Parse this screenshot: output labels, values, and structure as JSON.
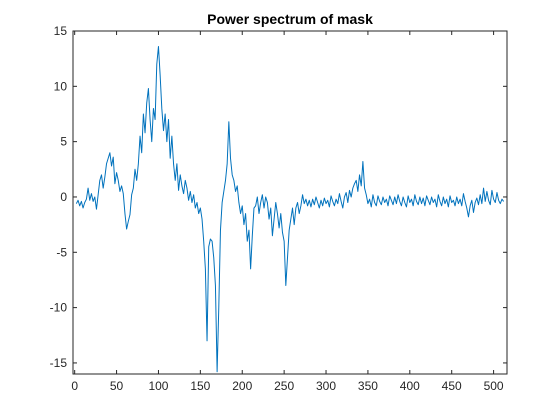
{
  "chart_data": {
    "type": "line",
    "title": "Power spectrum of mask",
    "xlabel": "",
    "ylabel": "",
    "xlim": [
      -2,
      516
    ],
    "ylim": [
      -16,
      15
    ],
    "xticks": [
      0,
      50,
      100,
      150,
      200,
      250,
      300,
      350,
      400,
      450,
      500
    ],
    "yticks": [
      -15,
      -10,
      -5,
      0,
      5,
      10,
      15
    ],
    "grid": false,
    "legend": "none",
    "series": [
      {
        "color": "#0072BD",
        "points": [
          [
            2,
            -0.6
          ],
          [
            4,
            -0.3
          ],
          [
            6,
            -0.8
          ],
          [
            8,
            -0.4
          ],
          [
            10,
            -1.0
          ],
          [
            12,
            -0.5
          ],
          [
            14,
            -0.2
          ],
          [
            16,
            0.8
          ],
          [
            18,
            -0.3
          ],
          [
            20,
            0.3
          ],
          [
            22,
            -0.4
          ],
          [
            24,
            0.0
          ],
          [
            26,
            -1.1
          ],
          [
            28,
            0.2
          ],
          [
            30,
            1.5
          ],
          [
            32,
            2.0
          ],
          [
            34,
            0.8
          ],
          [
            36,
            1.8
          ],
          [
            38,
            3.0
          ],
          [
            40,
            3.5
          ],
          [
            42,
            4.0
          ],
          [
            44,
            2.8
          ],
          [
            46,
            3.6
          ],
          [
            48,
            1.2
          ],
          [
            50,
            2.2
          ],
          [
            52,
            1.5
          ],
          [
            54,
            0.5
          ],
          [
            56,
            1.0
          ],
          [
            58,
            0.3
          ],
          [
            60,
            -1.5
          ],
          [
            62,
            -2.9
          ],
          [
            64,
            -2.2
          ],
          [
            66,
            -1.6
          ],
          [
            68,
            0.2
          ],
          [
            70,
            0.8
          ],
          [
            72,
            2.5
          ],
          [
            74,
            1.5
          ],
          [
            76,
            3.0
          ],
          [
            78,
            5.5
          ],
          [
            80,
            4.0
          ],
          [
            82,
            7.5
          ],
          [
            84,
            5.8
          ],
          [
            86,
            8.5
          ],
          [
            88,
            9.8
          ],
          [
            90,
            7.0
          ],
          [
            92,
            5.0
          ],
          [
            94,
            8.0
          ],
          [
            96,
            7.0
          ],
          [
            98,
            12.0
          ],
          [
            100,
            13.6
          ],
          [
            102,
            11.0
          ],
          [
            104,
            8.0
          ],
          [
            106,
            6.0
          ],
          [
            108,
            7.5
          ],
          [
            110,
            5.0
          ],
          [
            112,
            7.0
          ],
          [
            114,
            3.5
          ],
          [
            116,
            5.5
          ],
          [
            118,
            3.0
          ],
          [
            120,
            1.5
          ],
          [
            122,
            3.0
          ],
          [
            124,
            0.6
          ],
          [
            126,
            2.0
          ],
          [
            128,
            1.0
          ],
          [
            130,
            0.3
          ],
          [
            132,
            1.5
          ],
          [
            134,
            0.8
          ],
          [
            136,
            -0.3
          ],
          [
            138,
            0.5
          ],
          [
            140,
            -0.5
          ],
          [
            142,
            0.2
          ],
          [
            144,
            -1.0
          ],
          [
            146,
            -0.5
          ],
          [
            148,
            -1.5
          ],
          [
            150,
            -1.0
          ],
          [
            152,
            -2.0
          ],
          [
            154,
            -4.0
          ],
          [
            156,
            -6.5
          ],
          [
            158,
            -13.0
          ],
          [
            160,
            -4.5
          ],
          [
            162,
            -3.8
          ],
          [
            164,
            -4.0
          ],
          [
            166,
            -5.5
          ],
          [
            168,
            -8.0
          ],
          [
            170,
            -15.8
          ],
          [
            172,
            -10.0
          ],
          [
            174,
            -3.0
          ],
          [
            176,
            -0.5
          ],
          [
            178,
            0.5
          ],
          [
            180,
            1.5
          ],
          [
            182,
            3.0
          ],
          [
            184,
            6.8
          ],
          [
            186,
            3.5
          ],
          [
            188,
            2.0
          ],
          [
            190,
            1.5
          ],
          [
            192,
            0.5
          ],
          [
            194,
            1.0
          ],
          [
            196,
            -0.5
          ],
          [
            198,
            -1.5
          ],
          [
            200,
            -0.8
          ],
          [
            202,
            -2.5
          ],
          [
            204,
            -1.5
          ],
          [
            206,
            -4.0
          ],
          [
            208,
            -3.0
          ],
          [
            210,
            -6.5
          ],
          [
            212,
            -3.5
          ],
          [
            214,
            -1.0
          ],
          [
            216,
            -0.8
          ],
          [
            218,
            0.0
          ],
          [
            220,
            -1.5
          ],
          [
            222,
            -0.5
          ],
          [
            224,
            0.2
          ],
          [
            226,
            -1.0
          ],
          [
            228,
            0.0
          ],
          [
            230,
            -0.5
          ],
          [
            232,
            -2.0
          ],
          [
            234,
            -1.0
          ],
          [
            236,
            -3.5
          ],
          [
            238,
            -2.0
          ],
          [
            240,
            -0.5
          ],
          [
            242,
            -1.5
          ],
          [
            244,
            -2.8
          ],
          [
            246,
            -1.5
          ],
          [
            248,
            -3.2
          ],
          [
            250,
            -4.0
          ],
          [
            252,
            -8.0
          ],
          [
            254,
            -5.5
          ],
          [
            256,
            -3.0
          ],
          [
            258,
            -2.0
          ],
          [
            260,
            -1.0
          ],
          [
            262,
            -2.5
          ],
          [
            264,
            -1.0
          ],
          [
            266,
            -0.5
          ],
          [
            268,
            -1.5
          ],
          [
            270,
            -0.8
          ],
          [
            272,
            0.2
          ],
          [
            274,
            -0.6
          ],
          [
            276,
            -0.2
          ],
          [
            278,
            -0.8
          ],
          [
            280,
            -0.3
          ],
          [
            282,
            -0.9
          ],
          [
            284,
            -0.2
          ],
          [
            286,
            -0.7
          ],
          [
            288,
            0.0
          ],
          [
            290,
            -0.5
          ],
          [
            292,
            -1.0
          ],
          [
            294,
            -0.3
          ],
          [
            296,
            -0.8
          ],
          [
            298,
            -0.1
          ],
          [
            300,
            -0.6
          ],
          [
            302,
            -0.3
          ],
          [
            304,
            -0.9
          ],
          [
            306,
            0.1
          ],
          [
            308,
            -0.4
          ],
          [
            310,
            -0.8
          ],
          [
            312,
            -0.2
          ],
          [
            314,
            -0.6
          ],
          [
            316,
            0.3
          ],
          [
            318,
            -0.4
          ],
          [
            320,
            -1.0
          ],
          [
            322,
            0.0
          ],
          [
            324,
            0.4
          ],
          [
            326,
            -0.5
          ],
          [
            328,
            0.6
          ],
          [
            330,
            0.0
          ],
          [
            332,
            0.8
          ],
          [
            334,
            1.2
          ],
          [
            336,
            1.5
          ],
          [
            338,
            0.5
          ],
          [
            340,
            2.0
          ],
          [
            342,
            1.0
          ],
          [
            344,
            3.2
          ],
          [
            346,
            0.8
          ],
          [
            348,
            0.2
          ],
          [
            350,
            -0.6
          ],
          [
            352,
            -0.2
          ],
          [
            354,
            -0.9
          ],
          [
            356,
            0.2
          ],
          [
            358,
            -0.5
          ],
          [
            360,
            -0.8
          ],
          [
            362,
            0.1
          ],
          [
            364,
            -0.4
          ],
          [
            366,
            -0.7
          ],
          [
            368,
            0.0
          ],
          [
            370,
            -0.5
          ],
          [
            372,
            -0.2
          ],
          [
            374,
            -0.8
          ],
          [
            376,
            0.1
          ],
          [
            378,
            -0.3
          ],
          [
            380,
            -0.7
          ],
          [
            382,
            0.0
          ],
          [
            384,
            -0.6
          ],
          [
            386,
            0.2
          ],
          [
            388,
            -0.4
          ],
          [
            390,
            -0.8
          ],
          [
            392,
            0.0
          ],
          [
            394,
            -0.5
          ],
          [
            396,
            -0.9
          ],
          [
            398,
            0.1
          ],
          [
            400,
            -0.5
          ],
          [
            402,
            -0.2
          ],
          [
            404,
            -0.8
          ],
          [
            406,
            0.2
          ],
          [
            408,
            -0.4
          ],
          [
            410,
            -0.7
          ],
          [
            412,
            0.0
          ],
          [
            414,
            -0.6
          ],
          [
            416,
            -0.1
          ],
          [
            418,
            -0.8
          ],
          [
            420,
            0.1
          ],
          [
            422,
            -0.3
          ],
          [
            424,
            -0.7
          ],
          [
            426,
            0.0
          ],
          [
            428,
            -0.5
          ],
          [
            430,
            -0.2
          ],
          [
            432,
            -0.9
          ],
          [
            434,
            0.2
          ],
          [
            436,
            -0.4
          ],
          [
            438,
            -0.8
          ],
          [
            440,
            0.0
          ],
          [
            442,
            -0.6
          ],
          [
            444,
            -0.2
          ],
          [
            446,
            -0.9
          ],
          [
            448,
            0.1
          ],
          [
            450,
            -0.5
          ],
          [
            452,
            -0.3
          ],
          [
            454,
            -0.8
          ],
          [
            456,
            0.0
          ],
          [
            458,
            -0.6
          ],
          [
            460,
            -0.2
          ],
          [
            462,
            -0.8
          ],
          [
            464,
            0.3
          ],
          [
            466,
            -0.4
          ],
          [
            468,
            -1.0
          ],
          [
            470,
            -1.8
          ],
          [
            472,
            -0.8
          ],
          [
            474,
            -0.3
          ],
          [
            476,
            -1.4
          ],
          [
            478,
            -0.5
          ],
          [
            480,
            -0.1
          ],
          [
            482,
            -0.7
          ],
          [
            484,
            0.2
          ],
          [
            486,
            -0.6
          ],
          [
            488,
            0.8
          ],
          [
            490,
            -0.4
          ],
          [
            492,
            0.5
          ],
          [
            494,
            -0.3
          ],
          [
            496,
            -0.7
          ],
          [
            498,
            0.6
          ],
          [
            500,
            -0.2
          ],
          [
            502,
            -0.5
          ],
          [
            504,
            0.4
          ],
          [
            506,
            -0.3
          ],
          [
            508,
            -0.6
          ],
          [
            510,
            -0.2
          ],
          [
            512,
            -0.4
          ]
        ]
      }
    ]
  }
}
